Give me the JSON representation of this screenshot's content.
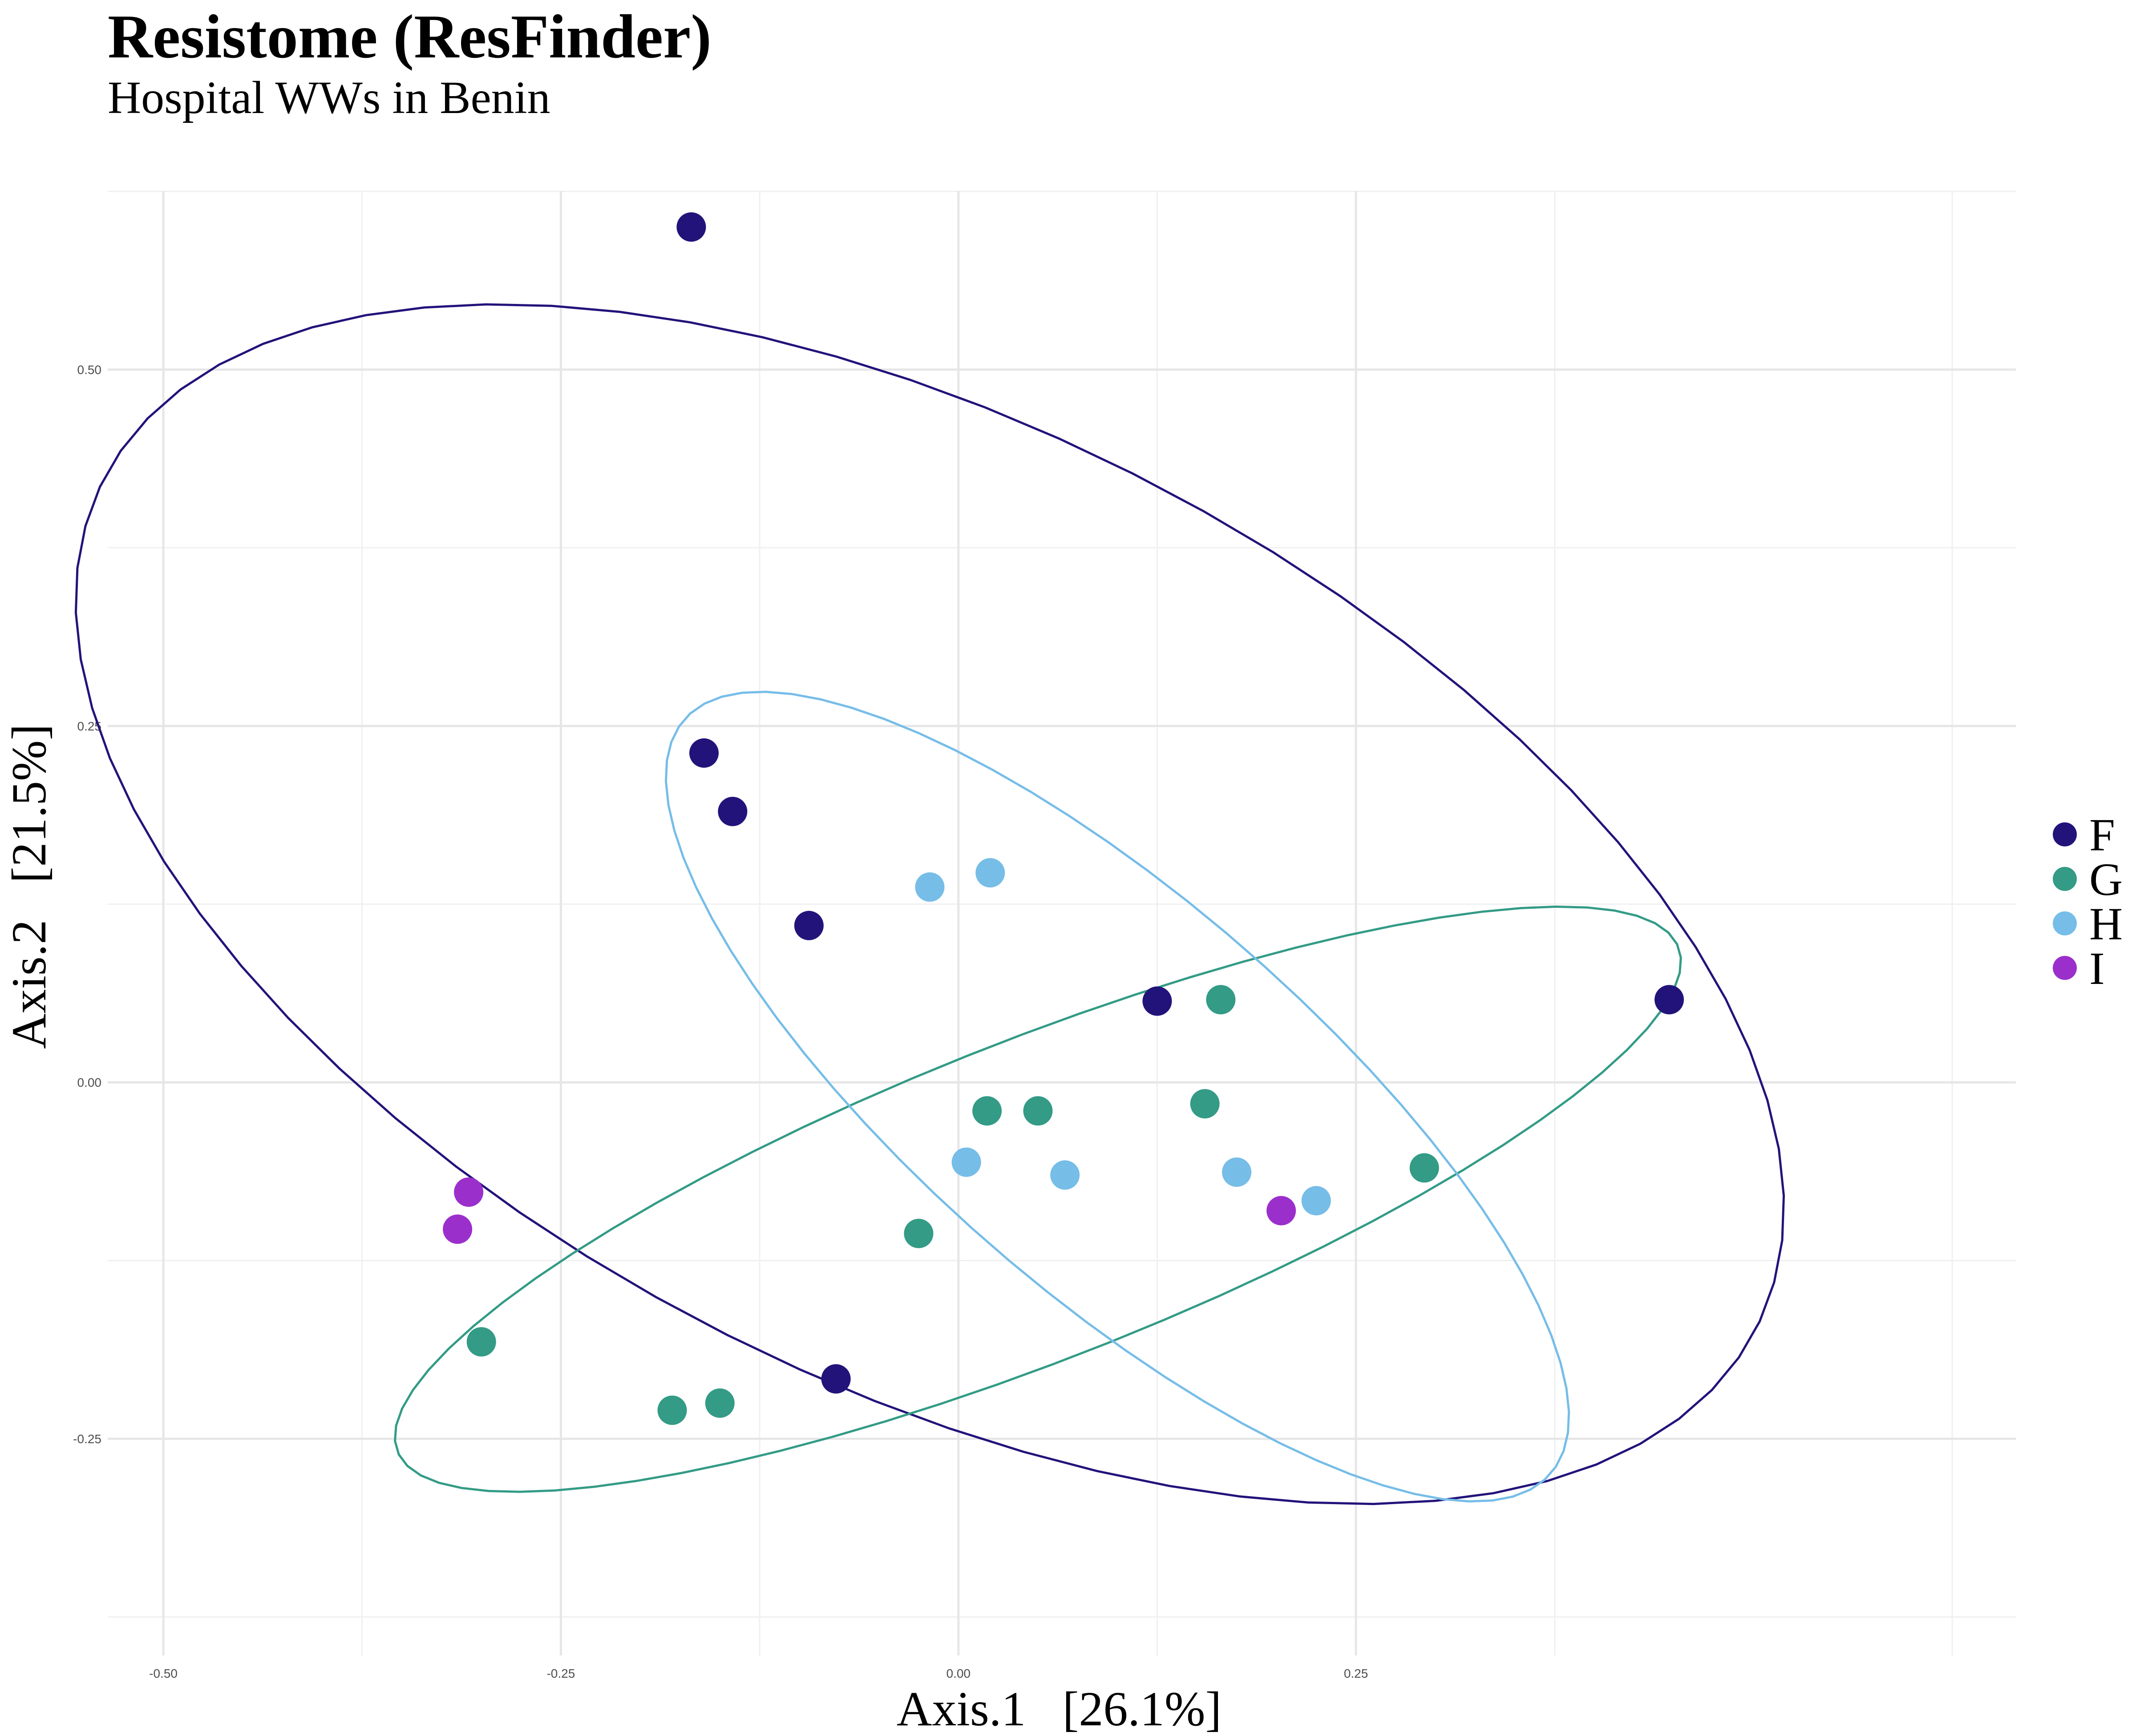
{
  "title": "Resistome (ResFinder)",
  "subtitle": "Hospital WWs in Benin",
  "chart_data": {
    "type": "scatter",
    "title": "Resistome (ResFinder)",
    "subtitle": "Hospital WWs in Benin",
    "xlabel": "Axis.1   [26.1%]",
    "ylabel": "Axis.2   [21.5%]",
    "xlim": [
      -0.535,
      0.665
    ],
    "ylim": [
      -0.402,
      0.625
    ],
    "xticks": [
      -0.5,
      -0.25,
      0.0,
      0.25
    ],
    "xtick_labels": [
      "-0.50",
      "-0.25",
      "0.00",
      "0.25"
    ],
    "yticks": [
      -0.25,
      0.0,
      0.25,
      0.5
    ],
    "ytick_labels": [
      "-0.25",
      "0.00",
      "0.25",
      "0.50"
    ],
    "grid": true,
    "legend_position": "right",
    "series": [
      {
        "name": "F",
        "color": "#22137a",
        "points": [
          [
            -0.168,
            0.6
          ],
          [
            -0.16,
            0.231
          ],
          [
            -0.142,
            0.19
          ],
          [
            -0.094,
            0.11
          ],
          [
            0.125,
            0.057
          ],
          [
            0.447,
            0.058
          ],
          [
            -0.077,
            -0.208
          ]
        ],
        "ellipse": {
          "cx": -0.018,
          "cy": 0.125,
          "a": 0.6,
          "b": 0.325,
          "angle_deg": -32
        }
      },
      {
        "name": "G",
        "color": "#339b86",
        "points": [
          [
            0.165,
            0.058
          ],
          [
            0.155,
            -0.015
          ],
          [
            0.018,
            -0.02
          ],
          [
            0.05,
            -0.02
          ],
          [
            0.293,
            -0.06
          ],
          [
            -0.025,
            -0.106
          ],
          [
            -0.3,
            -0.182
          ],
          [
            -0.18,
            -0.23
          ],
          [
            -0.15,
            -0.225
          ]
        ],
        "ellipse": {
          "cx": 0.05,
          "cy": -0.082,
          "a": 0.44,
          "b": 0.11,
          "angle_deg": 24
        }
      },
      {
        "name": "H",
        "color": "#76bde8",
        "points": [
          [
            -0.018,
            0.137
          ],
          [
            0.02,
            0.147
          ],
          [
            0.005,
            -0.056
          ],
          [
            0.067,
            -0.065
          ],
          [
            0.175,
            -0.063
          ],
          [
            0.225,
            -0.083
          ]
        ],
        "ellipse": {
          "cx": 0.1,
          "cy": -0.01,
          "a": 0.38,
          "b": 0.13,
          "angle_deg": -45
        }
      },
      {
        "name": "I",
        "color": "#9b2fcc",
        "points": [
          [
            -0.308,
            -0.077
          ],
          [
            -0.315,
            -0.103
          ],
          [
            0.203,
            -0.09
          ]
        ],
        "ellipse": null
      }
    ]
  }
}
